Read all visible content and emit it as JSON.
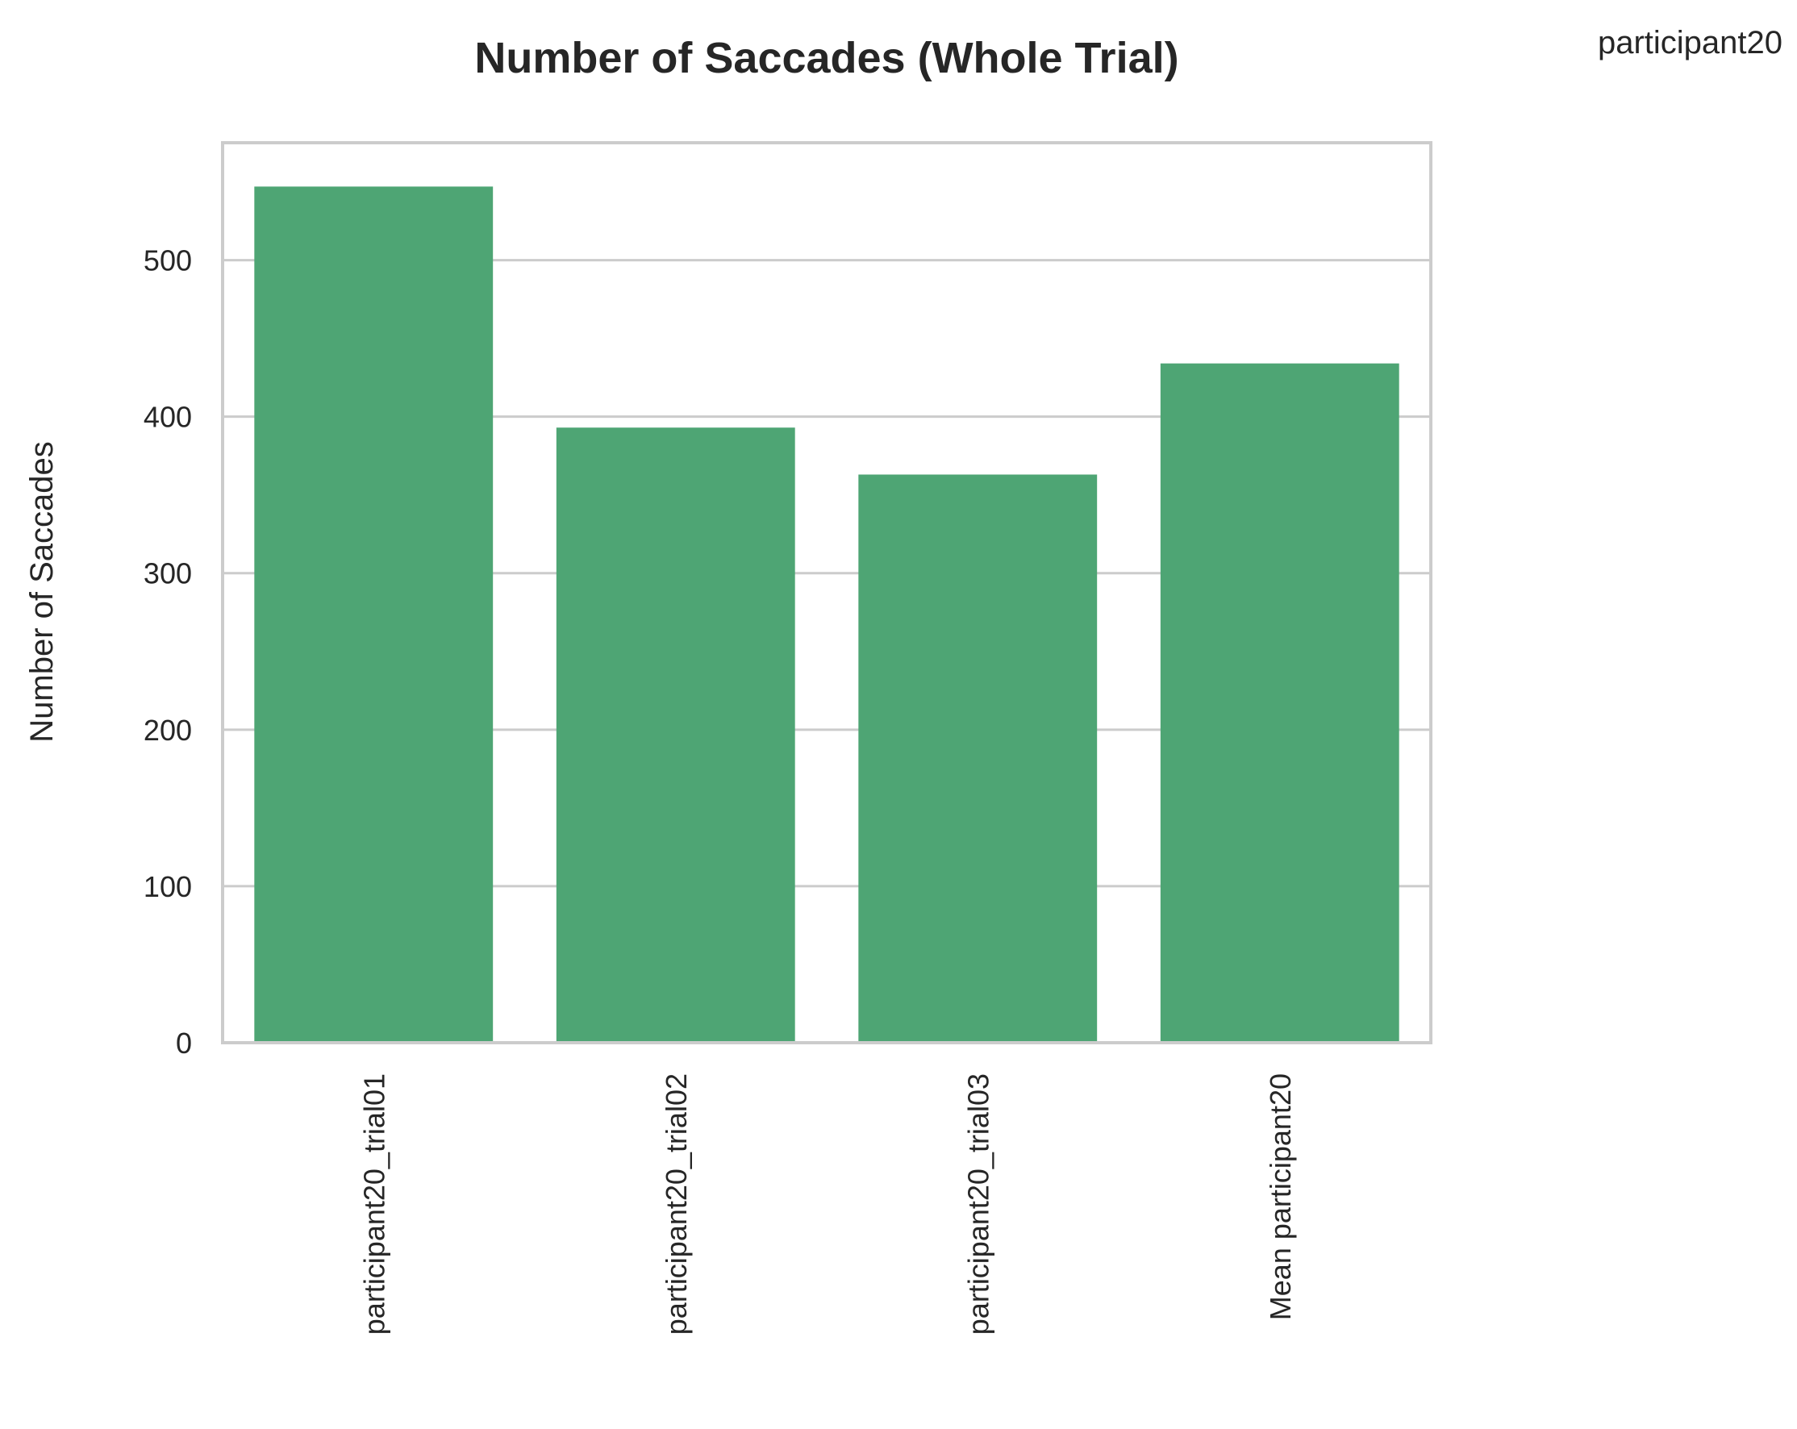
{
  "chart_data": {
    "type": "bar",
    "title": "Number of Saccades (Whole Trial)",
    "legend_text": "participant20",
    "legend_placement": "top-right",
    "xlabel": "",
    "ylabel": "Number of Saccades",
    "categories": [
      "participant20_trial01",
      "participant20_trial02",
      "participant20_trial03",
      "Mean participant20"
    ],
    "values": [
      547,
      393,
      363,
      434
    ],
    "ylim": [
      0,
      575
    ],
    "yticks": [
      "0",
      "100",
      "200",
      "300",
      "400",
      "500"
    ],
    "grid": true,
    "bar_color": "#4ea574",
    "grid_color": "#cccccc",
    "frame_color": "#cccccc"
  }
}
